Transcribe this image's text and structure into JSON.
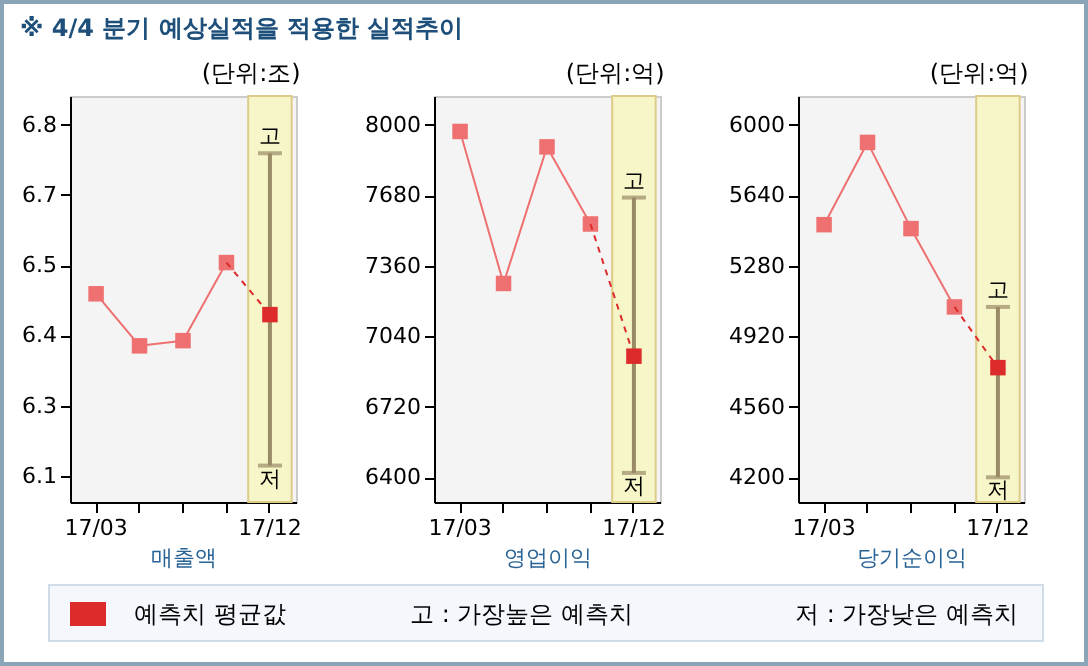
{
  "chart_data": [
    {
      "type": "line",
      "title": "※ 4/4 분기 예상실적을 적용한 실적추이",
      "subtitle": "(단위:조)",
      "xlabel": "매출액",
      "categories": [
        "17/03",
        null,
        null,
        null,
        "17/12"
      ],
      "ylim": [
        6.07,
        6.85
      ],
      "yticks": [
        {
          "value": 6.12,
          "label": "6.1"
        },
        {
          "value": 6.255,
          "label": "6.3"
        },
        {
          "value": 6.39,
          "label": "6.4"
        },
        {
          "value": 6.525,
          "label": "6.5"
        },
        {
          "value": 6.66,
          "label": "6.7"
        },
        {
          "value": 6.795,
          "label": "6.8"
        }
      ],
      "series": [
        {
          "color": "#ee7070",
          "values": [
            6.47,
            6.37,
            6.38,
            6.53,
            null
          ]
        },
        {
          "name": "예측치 평균값",
          "type": "scatter",
          "color": "#dd2a2a",
          "line_style": "dashed",
          "values": [
            null,
            null,
            null,
            null,
            6.43
          ],
          "errors": [
            null,
            null,
            null,
            null,
            [
              6.14,
              6.74
            ]
          ]
        }
      ],
      "bands": [
        {
          "axis": "x",
          "from": "17/12",
          "to": "17/12",
          "color": "#f6f6c8"
        }
      ],
      "annotations": [
        {
          "text": "고",
          "x": "17/12",
          "y": 6.74
        },
        {
          "text": "저",
          "x": "17/12",
          "y": 6.14
        },
        "고 : 가장높은 예측치",
        "저 : 가장낮은 예측치"
      ],
      "marker": "square",
      "legend": "bottom"
    },
    {
      "type": "line",
      "subtitle": "(단위:억)",
      "xlabel": "영업이익",
      "categories": [
        "17/03",
        null,
        null,
        null,
        "17/12"
      ],
      "ylim": [
        6288,
        8131
      ],
      "yticks": [
        6400,
        6720,
        7040,
        7360,
        7680,
        8000
      ],
      "series": [
        {
          "color": "#ee7070",
          "values": [
            7970,
            7280,
            7900,
            7550,
            null
          ]
        },
        {
          "type": "scatter",
          "color": "#dd2a2a",
          "line_style": "dashed",
          "values": [
            null,
            null,
            null,
            null,
            6950
          ],
          "errors": [
            null,
            null,
            null,
            null,
            [
              6420,
              7670
            ]
          ]
        }
      ],
      "bands": [
        {
          "axis": "x",
          "from": "17/12",
          "to": "17/12",
          "color": "#f6f6c8"
        }
      ],
      "annotations": [
        {
          "text": "고",
          "x": "17/12",
          "y": 7670
        },
        {
          "text": "저",
          "x": "17/12",
          "y": 6420
        }
      ],
      "marker": "square"
    },
    {
      "type": "line",
      "subtitle": "(단위:억)",
      "xlabel": "당기순이익",
      "categories": [
        "17/03",
        null,
        null,
        null,
        "17/12"
      ],
      "ylim": [
        4074,
        6147
      ],
      "yticks": [
        4200,
        4560,
        4920,
        5280,
        5640,
        6000
      ],
      "series": [
        {
          "color": "#ee7070",
          "values": [
            5490,
            5910,
            5470,
            5070,
            null
          ]
        },
        {
          "type": "scatter",
          "color": "#dd2a2a",
          "line_style": "dashed",
          "values": [
            null,
            null,
            null,
            null,
            4760
          ],
          "errors": [
            null,
            null,
            null,
            null,
            [
              4200,
              5070
            ]
          ]
        }
      ],
      "bands": [
        {
          "axis": "x",
          "from": "17/12",
          "to": "17/12",
          "color": "#f6f6c8"
        }
      ],
      "annotations": [
        {
          "text": "고",
          "x": "17/12",
          "y": 5070
        },
        {
          "text": "저",
          "x": "17/12",
          "y": 4200
        }
      ],
      "marker": "square"
    }
  ]
}
